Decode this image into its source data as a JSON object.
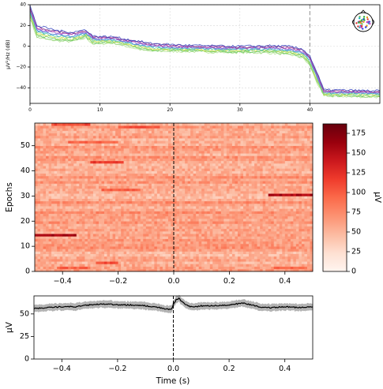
{
  "chart_data": [
    {
      "type": "line",
      "name": "psd",
      "ylabel": "µV²/Hz (dB)",
      "xlim": [
        0,
        50
      ],
      "ylim": [
        -55,
        40
      ],
      "xticks": [
        0,
        10,
        20,
        30,
        40
      ],
      "yticks": [
        -40,
        -20,
        0,
        20,
        40
      ],
      "grid": true,
      "vline": 40,
      "series_colors": [
        "#aee08a",
        "#8fd07a",
        "#60c860",
        "#b0e050",
        "#e0e060",
        "#50c8a0",
        "#40b0d0",
        "#6080e0",
        "#9050d0",
        "#c040a0",
        "#804090",
        "#3040c0"
      ],
      "profile": [
        [
          0,
          33
        ],
        [
          1,
          14
        ],
        [
          4,
          10
        ],
        [
          6,
          9
        ],
        [
          8,
          12
        ],
        [
          9,
          6
        ],
        [
          12,
          6
        ],
        [
          14,
          3
        ],
        [
          17,
          -1
        ],
        [
          22,
          -2
        ],
        [
          28,
          -3
        ],
        [
          34,
          -3
        ],
        [
          37,
          -4
        ],
        [
          39,
          -7
        ],
        [
          40,
          -14
        ],
        [
          41,
          -30
        ],
        [
          42,
          -45
        ],
        [
          50,
          -46
        ]
      ],
      "spread": [
        [
          0,
          6
        ],
        [
          12,
          3
        ],
        [
          16,
          4
        ],
        [
          22,
          3
        ],
        [
          30,
          3
        ],
        [
          38,
          4
        ],
        [
          41,
          5
        ],
        [
          42,
          3
        ],
        [
          50,
          3
        ]
      ],
      "inset": "sensor-topomap"
    },
    {
      "type": "heatmap",
      "name": "epochs-image",
      "ylabel": "Epochs",
      "xlim": [
        -0.5,
        0.5
      ],
      "ylim": [
        0,
        59
      ],
      "xticks": [
        -0.4,
        -0.2,
        0.0,
        0.2,
        0.4
      ],
      "xticklabels": [
        "−0.4",
        "−0.2",
        "0.0",
        "0.2",
        "0.4"
      ],
      "yticks": [
        0,
        10,
        20,
        30,
        40,
        50
      ],
      "n_epochs": 59,
      "n_times": 100,
      "base_value": 60,
      "vline": 0.0,
      "colorbar": {
        "vmin": 0,
        "vmax": 187,
        "ticks": [
          0,
          25,
          50,
          75,
          100,
          125,
          150,
          175
        ],
        "label": "µV",
        "colors": [
          "#fff5f0",
          "#fee0d2",
          "#fcbba1",
          "#fc9272",
          "#fb6a4a",
          "#ef3b2c",
          "#cb181d",
          "#99000d",
          "#67000d"
        ]
      },
      "highlights": [
        {
          "epoch": 58,
          "t0": -0.44,
          "t1": -0.3,
          "value": 110
        },
        {
          "epoch": 57,
          "t0": -0.2,
          "t1": -0.05,
          "value": 105
        },
        {
          "epoch": 51,
          "t0": -0.38,
          "t1": -0.2,
          "value": 95
        },
        {
          "epoch": 43,
          "t0": -0.3,
          "t1": -0.18,
          "value": 120
        },
        {
          "epoch": 32,
          "t0": -0.26,
          "t1": -0.12,
          "value": 100
        },
        {
          "epoch": 30,
          "t0": 0.34,
          "t1": 0.5,
          "value": 155
        },
        {
          "epoch": 14,
          "t0": -0.5,
          "t1": -0.35,
          "value": 160
        },
        {
          "epoch": 3,
          "t0": -0.28,
          "t1": -0.2,
          "value": 110
        },
        {
          "epoch": 1,
          "t0": 0.36,
          "t1": 0.48,
          "value": 90
        },
        {
          "epoch": 1,
          "t0": -0.42,
          "t1": -0.3,
          "value": 95
        }
      ]
    },
    {
      "type": "line",
      "name": "evoked",
      "xlabel": "Time (s)",
      "ylabel": "µV",
      "xlim": [
        -0.5,
        0.5
      ],
      "ylim": [
        0,
        70
      ],
      "xticks": [
        -0.4,
        -0.2,
        0.0,
        0.2,
        0.4
      ],
      "xticklabels": [
        "−0.4",
        "−0.2",
        "0.0",
        "0.2",
        "0.4"
      ],
      "yticks": [
        0,
        25,
        50
      ],
      "vline": 0.0,
      "mean": [
        [
          -0.5,
          56
        ],
        [
          -0.45,
          57
        ],
        [
          -0.4,
          58
        ],
        [
          -0.35,
          58
        ],
        [
          -0.3,
          60
        ],
        [
          -0.25,
          61
        ],
        [
          -0.2,
          60
        ],
        [
          -0.15,
          60
        ],
        [
          -0.1,
          59
        ],
        [
          -0.05,
          57
        ],
        [
          -0.02,
          55
        ],
        [
          -0.005,
          55
        ],
        [
          0.0,
          60
        ],
        [
          0.01,
          66
        ],
        [
          0.02,
          67
        ],
        [
          0.04,
          61
        ],
        [
          0.06,
          58
        ],
        [
          0.08,
          58
        ],
        [
          0.1,
          59
        ],
        [
          0.15,
          59
        ],
        [
          0.2,
          60
        ],
        [
          0.25,
          62
        ],
        [
          0.28,
          60
        ],
        [
          0.32,
          57
        ],
        [
          0.35,
          57
        ],
        [
          0.4,
          58
        ],
        [
          0.45,
          57
        ],
        [
          0.5,
          58
        ]
      ],
      "ci_halfwidth": 4,
      "line_color": "#000000",
      "band_color": "#9a9a9a"
    }
  ]
}
